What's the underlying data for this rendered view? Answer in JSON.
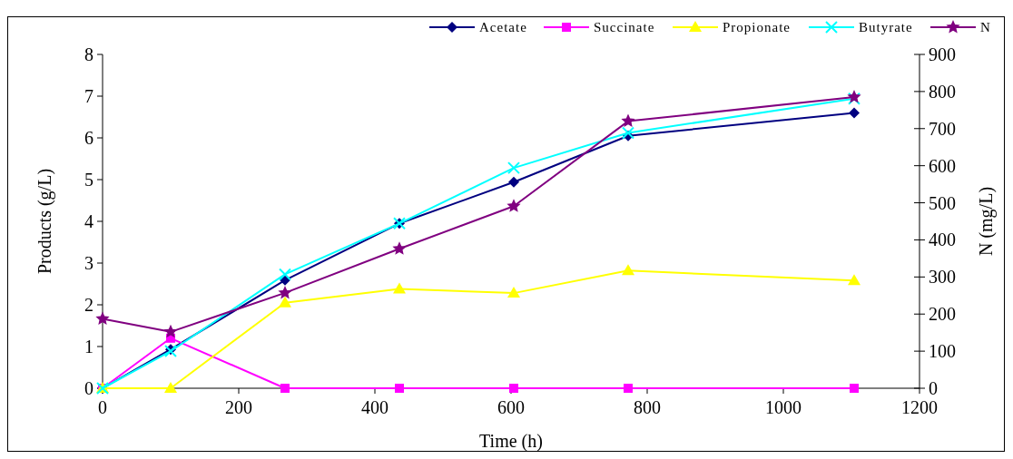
{
  "chart_data": {
    "type": "line",
    "xlabel": "Time (h)",
    "ylabel": "Products (g/L)",
    "y2label": "N (mg/L)",
    "x": [
      0,
      100,
      268,
      436,
      604,
      772,
      1104
    ],
    "xlim": [
      0,
      1200
    ],
    "xticks": [
      0,
      200,
      400,
      600,
      800,
      1000,
      1200
    ],
    "ylim": [
      0,
      8
    ],
    "yticks": [
      0,
      1,
      2,
      3,
      4,
      5,
      6,
      7,
      8
    ],
    "y2lim": [
      0,
      900
    ],
    "y2ticks": [
      0,
      100,
      200,
      300,
      400,
      500,
      600,
      700,
      800,
      900
    ],
    "legend": "top right",
    "grid": false,
    "line_style": "solid",
    "series": [
      {
        "name": "Acetate",
        "color": "#000080",
        "marker": "diamond",
        "values": [
          0,
          0.93,
          2.59,
          3.95,
          4.94,
          6.05,
          6.6
        ]
      },
      {
        "name": "Succinate",
        "color": "#ff00ff",
        "marker": "square",
        "values": [
          0,
          1.2,
          0,
          0,
          0,
          0,
          0
        ]
      },
      {
        "name": "Propionate",
        "color": "#ffff00",
        "marker": "triangle",
        "values": [
          0,
          0,
          2.05,
          2.38,
          2.28,
          2.82,
          2.58
        ]
      },
      {
        "name": "Butyrate",
        "color": "#00ffff",
        "marker": "cross",
        "values": [
          0,
          0.89,
          2.73,
          3.95,
          5.28,
          6.12,
          6.94
        ]
      },
      {
        "name": "N",
        "color": "#800080",
        "marker": "star",
        "axis": "y2",
        "values": [
          187,
          152,
          257,
          376,
          491,
          720,
          785
        ]
      }
    ]
  }
}
